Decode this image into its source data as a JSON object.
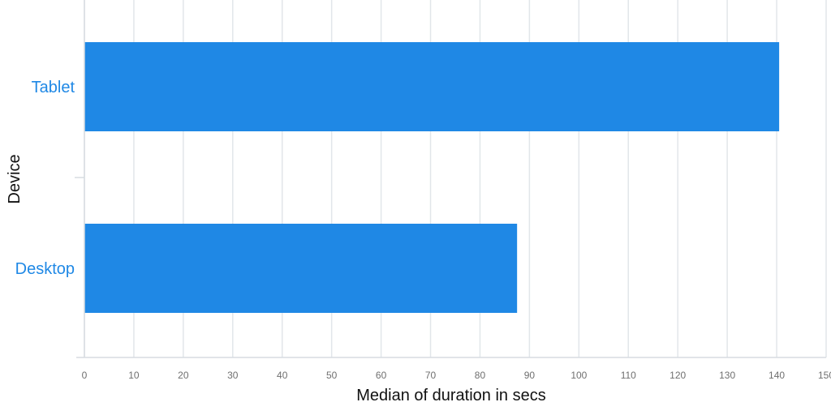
{
  "chart_data": {
    "type": "bar",
    "orientation": "horizontal",
    "categories": [
      "Tablet",
      "Desktop"
    ],
    "values": [
      140.5,
      87.5
    ],
    "xlabel": "Median of duration in secs",
    "ylabel": "Device",
    "xlim": [
      0,
      150
    ],
    "xticks": [
      "0",
      "10",
      "20",
      "30",
      "40",
      "50",
      "60",
      "70",
      "80",
      "90",
      "100",
      "110",
      "120",
      "130",
      "140",
      "150"
    ],
    "grid": true,
    "legend": "none",
    "bar_color": "#1f88e5",
    "category_label_color": "#1f88e5"
  }
}
